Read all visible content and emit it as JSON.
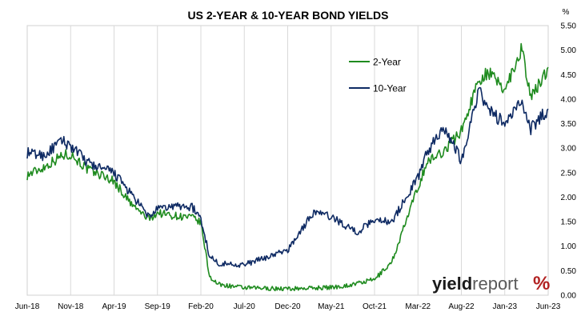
{
  "chart_data": {
    "type": "line",
    "title": "US 2-YEAR & 10-YEAR BOND YIELDS",
    "y_unit": "%",
    "ylim": [
      0,
      5.5
    ],
    "y_ticks": [
      "0.00",
      "0.50",
      "1.00",
      "1.50",
      "2.00",
      "2.50",
      "3.00",
      "3.50",
      "4.00",
      "4.50",
      "5.00",
      "5.50"
    ],
    "x_ticks": [
      "Jun-18",
      "Nov-18",
      "Apr-19",
      "Sep-19",
      "Feb-20",
      "Jul-20",
      "Dec-20",
      "May-21",
      "Oct-21",
      "Mar-22",
      "Aug-22",
      "Jan-23",
      "Jun-23"
    ],
    "grid": "vertical",
    "legend_position": "top-right",
    "series": [
      {
        "name": "2-Year",
        "color": "#1f8b1f",
        "x": [
          "Jun-18",
          "Aug-18",
          "Oct-18",
          "Nov-18",
          "Jan-19",
          "Mar-19",
          "Apr-19",
          "Jun-19",
          "Aug-19",
          "Sep-19",
          "Nov-19",
          "Jan-20",
          "Feb-20",
          "Mar-20",
          "Apr-20",
          "Jul-20",
          "Dec-20",
          "May-21",
          "Jul-21",
          "Oct-21",
          "Dec-21",
          "Mar-22",
          "Apr-22",
          "Jun-22",
          "Aug-22",
          "Oct-22",
          "Nov-22",
          "Jan-23",
          "Mar-23",
          "Apr-23",
          "Jun-23"
        ],
        "values": [
          2.45,
          2.62,
          2.85,
          2.88,
          2.56,
          2.42,
          2.32,
          1.85,
          1.55,
          1.68,
          1.62,
          1.58,
          1.48,
          0.38,
          0.22,
          0.15,
          0.13,
          0.16,
          0.2,
          0.32,
          0.68,
          2.2,
          2.7,
          2.95,
          3.35,
          4.4,
          4.55,
          4.2,
          5.05,
          4.0,
          4.65
        ]
      },
      {
        "name": "10-Year",
        "color": "#0e2a63",
        "x": [
          "Jun-18",
          "Aug-18",
          "Oct-18",
          "Nov-18",
          "Jan-19",
          "Mar-19",
          "Apr-19",
          "Jun-19",
          "Aug-19",
          "Sep-19",
          "Nov-19",
          "Jan-20",
          "Feb-20",
          "Mar-20",
          "Apr-20",
          "Jul-20",
          "Dec-20",
          "Mar-21",
          "May-21",
          "Aug-21",
          "Oct-21",
          "Dec-21",
          "Mar-22",
          "Apr-22",
          "Jun-22",
          "Aug-22",
          "Oct-22",
          "Nov-22",
          "Jan-23",
          "Mar-23",
          "Apr-23",
          "Jun-23"
        ],
        "values": [
          2.9,
          2.85,
          3.15,
          3.05,
          2.7,
          2.55,
          2.5,
          2.05,
          1.6,
          1.75,
          1.82,
          1.8,
          1.55,
          0.8,
          0.65,
          0.62,
          0.92,
          1.7,
          1.6,
          1.28,
          1.55,
          1.5,
          2.4,
          2.9,
          3.45,
          2.75,
          4.2,
          3.8,
          3.5,
          3.95,
          3.4,
          3.8
        ]
      }
    ]
  },
  "brand": {
    "logo_text_1": "yield",
    "logo_text_2": "report",
    "logo_symbol": "%",
    "colors": {
      "yield": "#1a1a1a",
      "report": "#5a5a5a",
      "symbol": "#b22222"
    }
  }
}
